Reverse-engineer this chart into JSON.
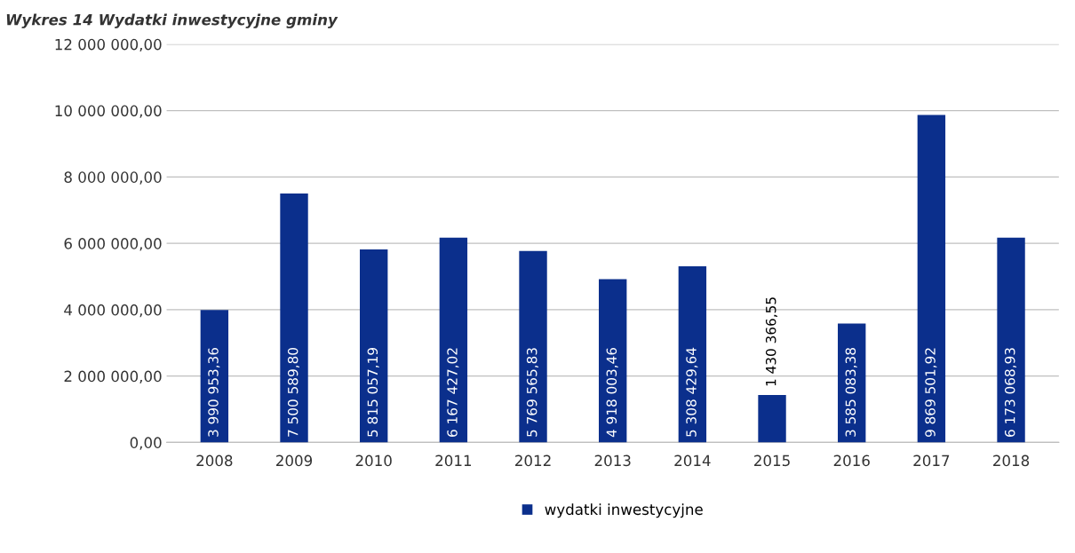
{
  "chart_data": {
    "type": "bar",
    "title": "Wykres 14 Wydatki inwestycyjne gminy",
    "categories": [
      "2008",
      "2009",
      "2010",
      "2011",
      "2012",
      "2013",
      "2014",
      "2015",
      "2016",
      "2017",
      "2018"
    ],
    "series": [
      {
        "name": "wydatki inwestycyjne",
        "color": "#0b2f8c",
        "values": [
          3990953.36,
          7500589.8,
          5815057.19,
          6167427.02,
          5769565.83,
          4918003.46,
          5308429.64,
          1430366.55,
          3585083.38,
          9869501.92,
          6173068.93
        ]
      }
    ],
    "value_labels": [
      "3 990 953,36",
      "7 500 589,80",
      "5 815 057,19",
      "6 167 427,02",
      "5 769 565,83",
      "4 918 003,46",
      "5 308 429,64",
      "1 430 366,55",
      "3 585 083,38",
      "9 869 501,92",
      "6 173 068,93"
    ],
    "ylim": [
      0,
      12000000
    ],
    "yticks": [
      {
        "value": 0,
        "label": "0,00"
      },
      {
        "value": 2000000,
        "label": "2 000 000,00"
      },
      {
        "value": 4000000,
        "label": "4 000 000,00"
      },
      {
        "value": 6000000,
        "label": "6 000 000,00"
      },
      {
        "value": 8000000,
        "label": "8 000 000,00"
      },
      {
        "value": 10000000,
        "label": "10 000 000,00"
      },
      {
        "value": 12000000,
        "label": "12 000 000,00"
      }
    ],
    "grid": "y",
    "legend": "bottom"
  }
}
